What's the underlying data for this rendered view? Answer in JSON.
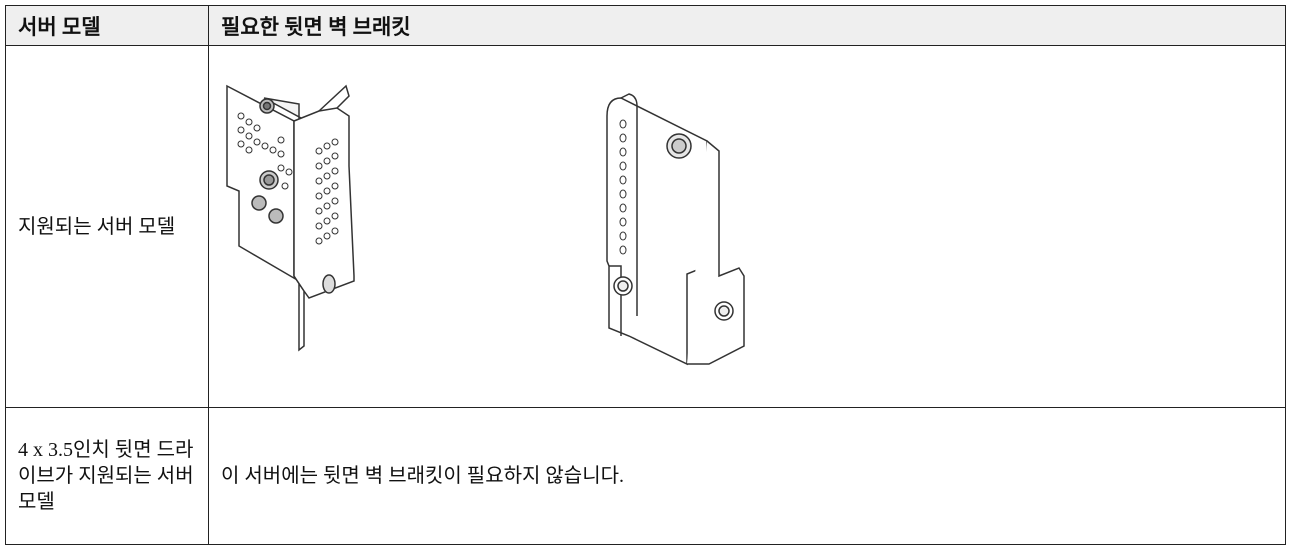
{
  "table": {
    "header": [
      "서버 모델",
      "필요한 뒷면 벽 브래킷"
    ],
    "rows": [
      [
        "지원되는 서버 모델"
      ],
      [
        "4 x 3.5인치 뒷면 드라이브가 지원되는 서버 모델",
        "이 서버에는 뒷면 벽 브래킷이 필요하지 않습니다."
      ]
    ]
  }
}
